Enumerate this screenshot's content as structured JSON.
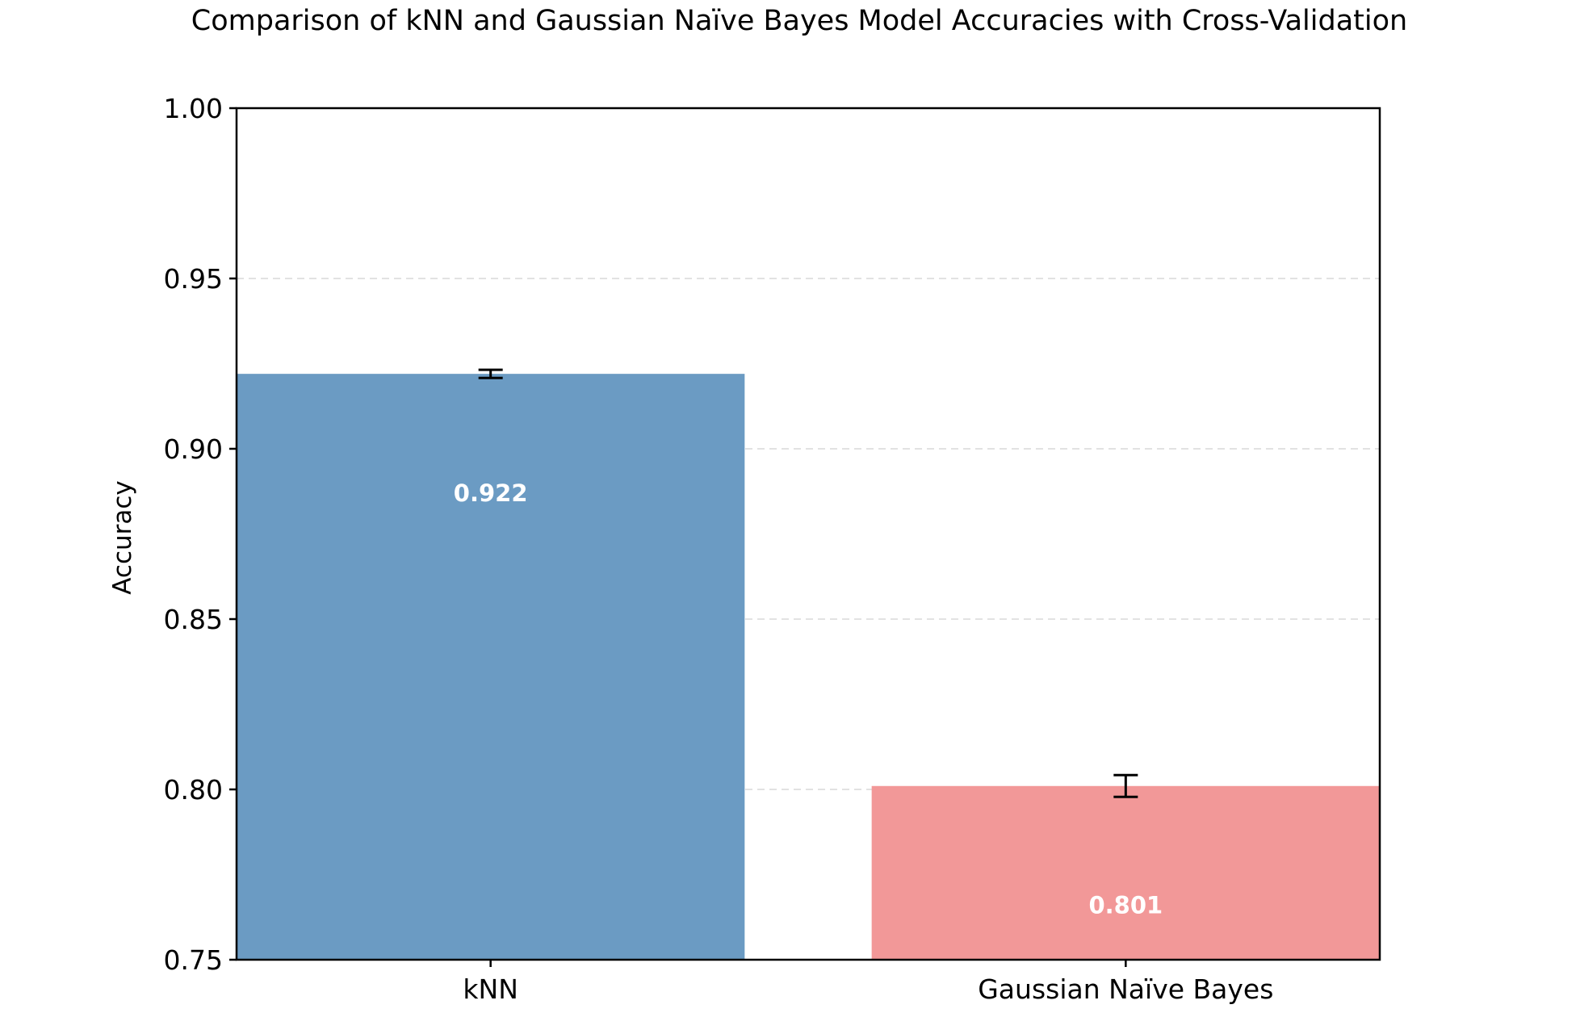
{
  "chart_data": {
    "type": "bar",
    "title": "Comparison of kNN and Gaussian Naïve Bayes Model Accuracies with Cross-Validation",
    "xlabel": "",
    "ylabel": "Accuracy",
    "categories": [
      "kNN",
      "Gaussian Naïve Bayes"
    ],
    "values": [
      0.922,
      0.801
    ],
    "errors": [
      0.0012,
      0.0032
    ],
    "value_labels": [
      "0.922",
      "0.801"
    ],
    "colors": [
      "#6b9bc3",
      "#f29898"
    ],
    "ylim": [
      0.75,
      1.0
    ],
    "yticks": [
      0.75,
      0.8,
      0.85,
      0.9,
      0.95,
      1.0
    ],
    "ytick_labels": [
      "0.75",
      "0.80",
      "0.85",
      "0.90",
      "0.95",
      "1.00"
    ],
    "grid": "y-dashed",
    "legend": "none"
  }
}
